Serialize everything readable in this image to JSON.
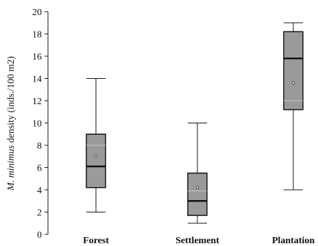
{
  "chart_data": {
    "type": "box",
    "ylabel_italic": "M. minimus",
    "ylabel_rest": " density (inds./100 m2)",
    "ylim": [
      0,
      20
    ],
    "yticks": [
      0,
      2,
      4,
      6,
      8,
      10,
      12,
      14,
      16,
      18,
      20
    ],
    "grid": false,
    "categories": [
      "Forest",
      "Settlement",
      "Plantation"
    ],
    "boxes": [
      {
        "category": "Forest",
        "min": 2,
        "q1": 4.2,
        "median": 6.1,
        "mean": 7.0,
        "inner_line": 8.0,
        "q3": 9.0,
        "max": 14
      },
      {
        "category": "Settlement",
        "min": 1,
        "q1": 1.7,
        "median": 3.0,
        "mean": 4.2,
        "inner_line": 3.9,
        "q3": 5.5,
        "max": 10
      },
      {
        "category": "Plantation",
        "min": 4,
        "q1": 11.2,
        "median": 15.8,
        "mean": 13.6,
        "inner_line": 12.0,
        "q3": 18.2,
        "max": 19
      }
    ],
    "colors": {
      "box_fill": "#9a9a9a",
      "line": "#111111",
      "inner_line": "#c8c8c8"
    }
  }
}
